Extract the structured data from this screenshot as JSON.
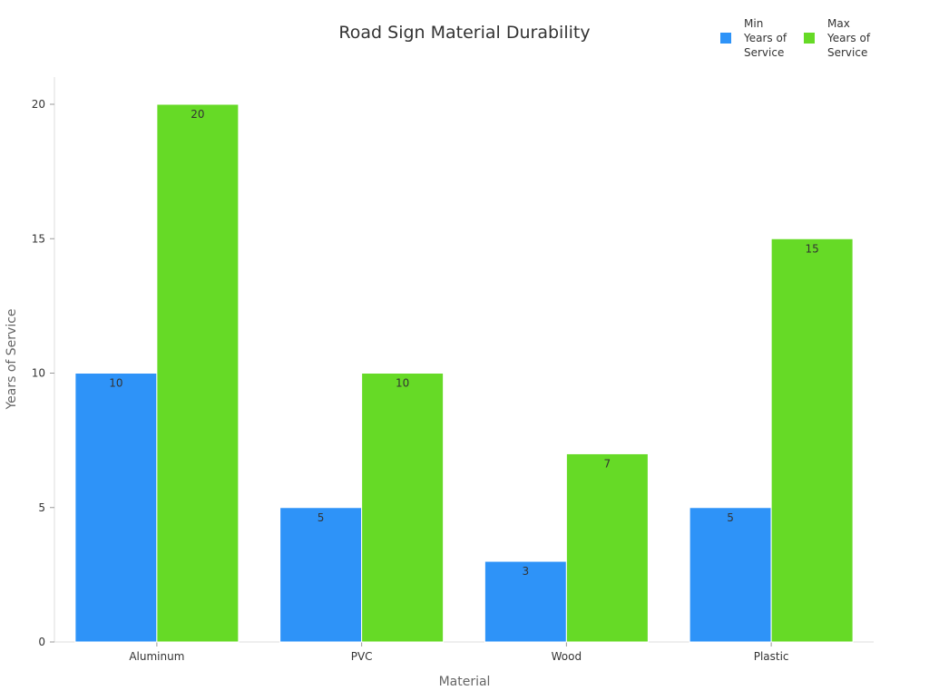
{
  "chart_data": {
    "type": "bar",
    "title": "Road Sign Material Durability",
    "xlabel": "Material",
    "ylabel": "Years of Service",
    "categories": [
      "Aluminum",
      "PVC",
      "Wood",
      "Plastic"
    ],
    "series": [
      {
        "name": "Min Years of Service",
        "values": [
          10,
          5,
          3,
          5
        ],
        "color": "#2E93F8"
      },
      {
        "name": "Max Years of Service",
        "values": [
          20,
          10,
          7,
          15
        ],
        "color": "#66DA26"
      }
    ],
    "ylim": [
      0,
      20
    ],
    "yticks": [
      0,
      5,
      10,
      15,
      20
    ],
    "grid": false,
    "legend": "top-right",
    "data_labels": true
  }
}
